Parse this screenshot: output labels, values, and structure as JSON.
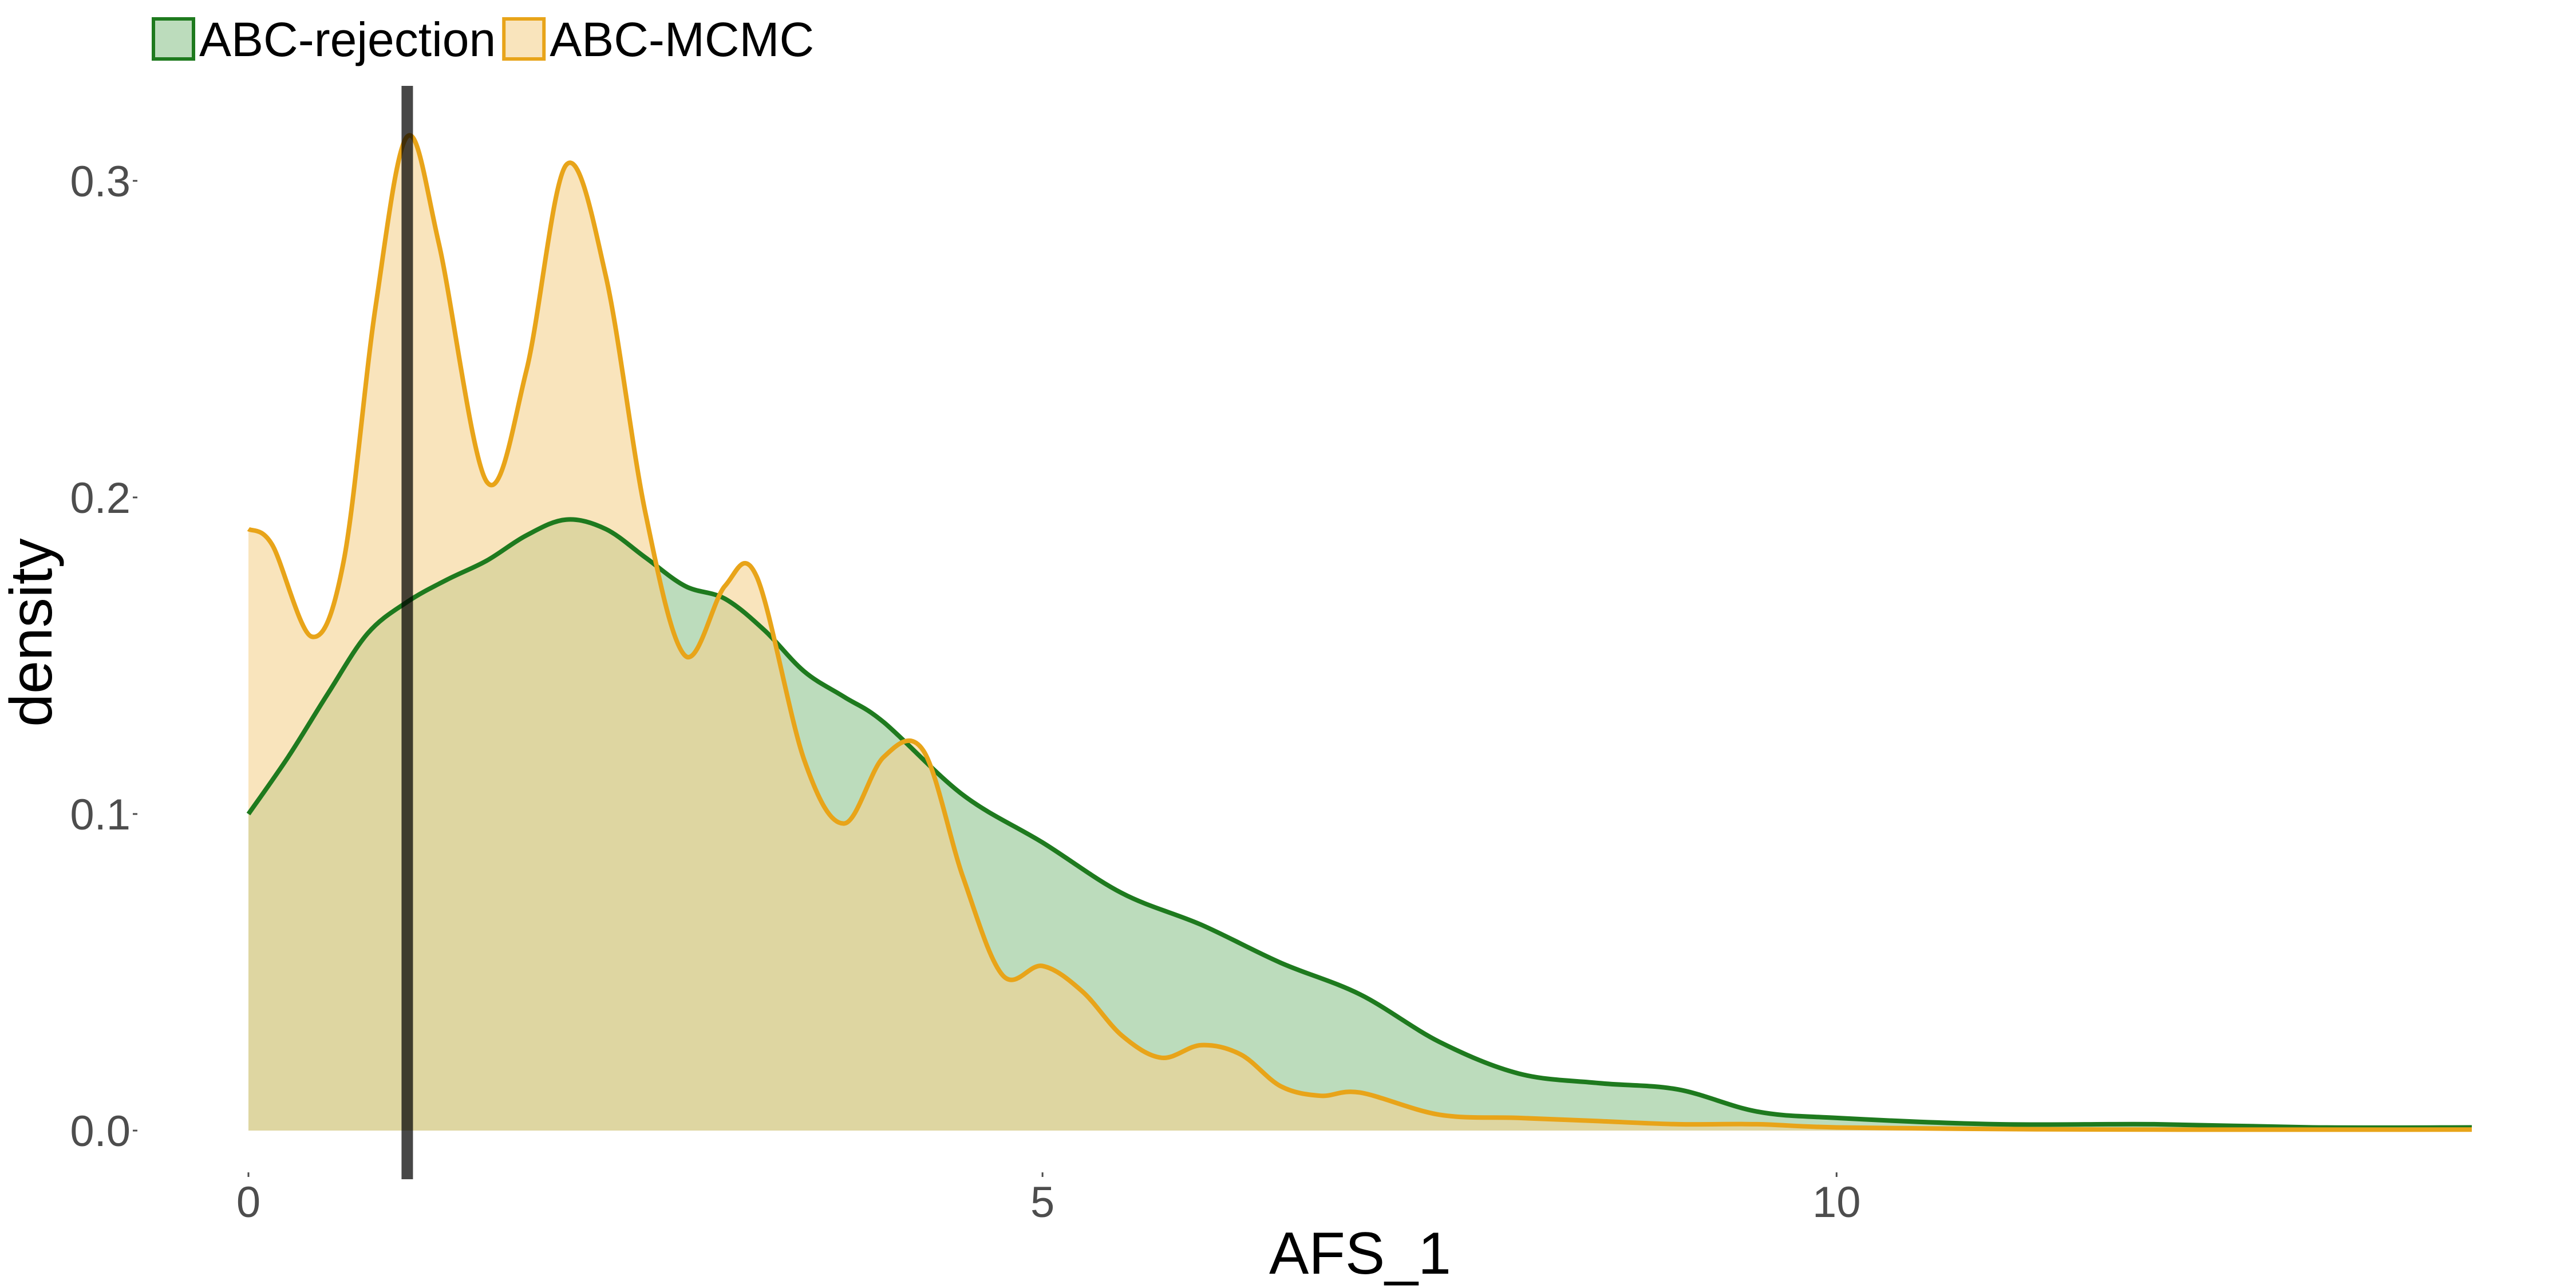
{
  "chart_data": {
    "type": "area",
    "xlabel": "AFS_1",
    "ylabel": "density",
    "xlim": [
      0,
      14
    ],
    "ylim": [
      0,
      0.33
    ],
    "x_ticks": [
      0,
      5,
      10
    ],
    "y_ticks": [
      0.0,
      0.1,
      0.2,
      0.3
    ],
    "x_tick_labels": [
      "0",
      "5",
      "10"
    ],
    "y_tick_labels": [
      "0.0",
      "0.1",
      "0.2",
      "0.3"
    ],
    "grid": false,
    "legend_position": "top-left",
    "reference_line": {
      "x": 1,
      "color": "#000000"
    },
    "series": [
      {
        "name": "ABC-rejection",
        "line_color": "#1e7a1e",
        "fill_color": "#8fc490",
        "x": [
          0,
          0.25,
          0.5,
          0.75,
          1,
          1.25,
          1.5,
          1.75,
          2,
          2.25,
          2.5,
          2.75,
          3,
          3.25,
          3.5,
          3.75,
          4,
          4.5,
          5,
          5.5,
          6,
          6.5,
          7,
          7.5,
          8,
          8.5,
          9,
          9.5,
          10,
          11,
          12,
          13,
          14
        ],
        "y": [
          0.1,
          0.118,
          0.138,
          0.157,
          0.167,
          0.174,
          0.18,
          0.188,
          0.193,
          0.19,
          0.181,
          0.172,
          0.168,
          0.158,
          0.145,
          0.137,
          0.129,
          0.106,
          0.091,
          0.075,
          0.065,
          0.053,
          0.043,
          0.028,
          0.018,
          0.015,
          0.013,
          0.006,
          0.004,
          0.002,
          0.002,
          0.001,
          0.001
        ]
      },
      {
        "name": "ABC-MCMC",
        "line_color": "#e8a419",
        "fill_color": "#f5d28f",
        "x": [
          0,
          0.15,
          0.4,
          0.6,
          0.8,
          1,
          1.2,
          1.5,
          1.75,
          2,
          2.25,
          2.5,
          2.75,
          3,
          3.2,
          3.5,
          3.75,
          4,
          4.25,
          4.5,
          4.75,
          5,
          5.25,
          5.5,
          5.75,
          6,
          6.25,
          6.5,
          6.75,
          7,
          7.5,
          8,
          8.5,
          9,
          9.5,
          10,
          11,
          12,
          14
        ],
        "y": [
          0.19,
          0.185,
          0.156,
          0.18,
          0.26,
          0.314,
          0.28,
          0.205,
          0.24,
          0.305,
          0.27,
          0.195,
          0.15,
          0.172,
          0.175,
          0.117,
          0.097,
          0.118,
          0.12,
          0.08,
          0.049,
          0.052,
          0.044,
          0.03,
          0.023,
          0.027,
          0.024,
          0.014,
          0.011,
          0.012,
          0.005,
          0.004,
          0.003,
          0.002,
          0.002,
          0.001,
          0.0005,
          0.0003,
          0.0003
        ]
      }
    ]
  }
}
